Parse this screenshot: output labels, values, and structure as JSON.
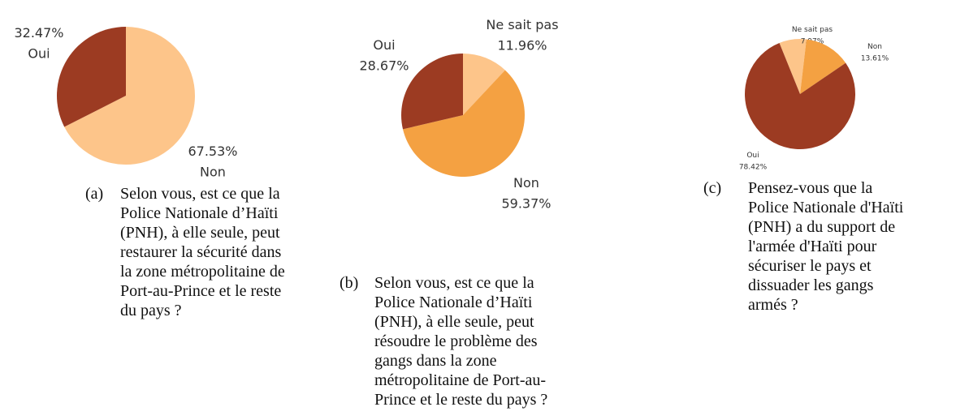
{
  "chart_data": [
    {
      "type": "pie",
      "categories": [
        "Non",
        "Oui"
      ],
      "values": [
        67.53,
        32.47
      ],
      "value_labels": [
        "67.53%",
        "32.47%"
      ],
      "colors": [
        "#fdc58a",
        "#9c3b22"
      ],
      "caption_label": "(a)",
      "caption_lines": [
        "Selon vous, est ce que la",
        "Police Nationale d’Haïti",
        "(PNH), à elle seule, peut",
        "restaurer la sécurité dans",
        "la zone métropolitaine de",
        "Port-au-Prince et le reste",
        "du pays ?"
      ]
    },
    {
      "type": "pie",
      "categories": [
        "Ne sait pas",
        "Non",
        "Oui"
      ],
      "values": [
        11.96,
        59.37,
        28.67
      ],
      "value_labels": [
        "11.96%",
        "59.37%",
        "28.67%"
      ],
      "colors": [
        "#fdc58a",
        "#f4a142",
        "#9c3b22"
      ],
      "caption_label": "(b)",
      "caption_lines": [
        "Selon vous, est ce que la",
        "Police Nationale d’Haïti",
        "(PNH), à elle seule, peut",
        "résoudre le problème des",
        "gangs dans   la zone",
        "métropolitaine de Port-au-",
        "Prince et le reste du pays ?"
      ]
    },
    {
      "type": "pie",
      "categories": [
        "Ne sait pas",
        "Non",
        "Oui"
      ],
      "values": [
        7.97,
        13.61,
        78.42
      ],
      "value_labels": [
        "7.97%",
        "13.61%",
        "78.42%"
      ],
      "colors": [
        "#fdc58a",
        "#f4a142",
        "#9c3b22"
      ],
      "caption_label": "(c)",
      "caption_lines": [
        "Pensez-vous que la",
        "Police Nationale d'Haïti",
        "(PNH) a du support de",
        "l'armée d'Haïti pour",
        "sécuriser le pays et",
        "dissuader les gangs",
        "armés ?"
      ]
    }
  ]
}
